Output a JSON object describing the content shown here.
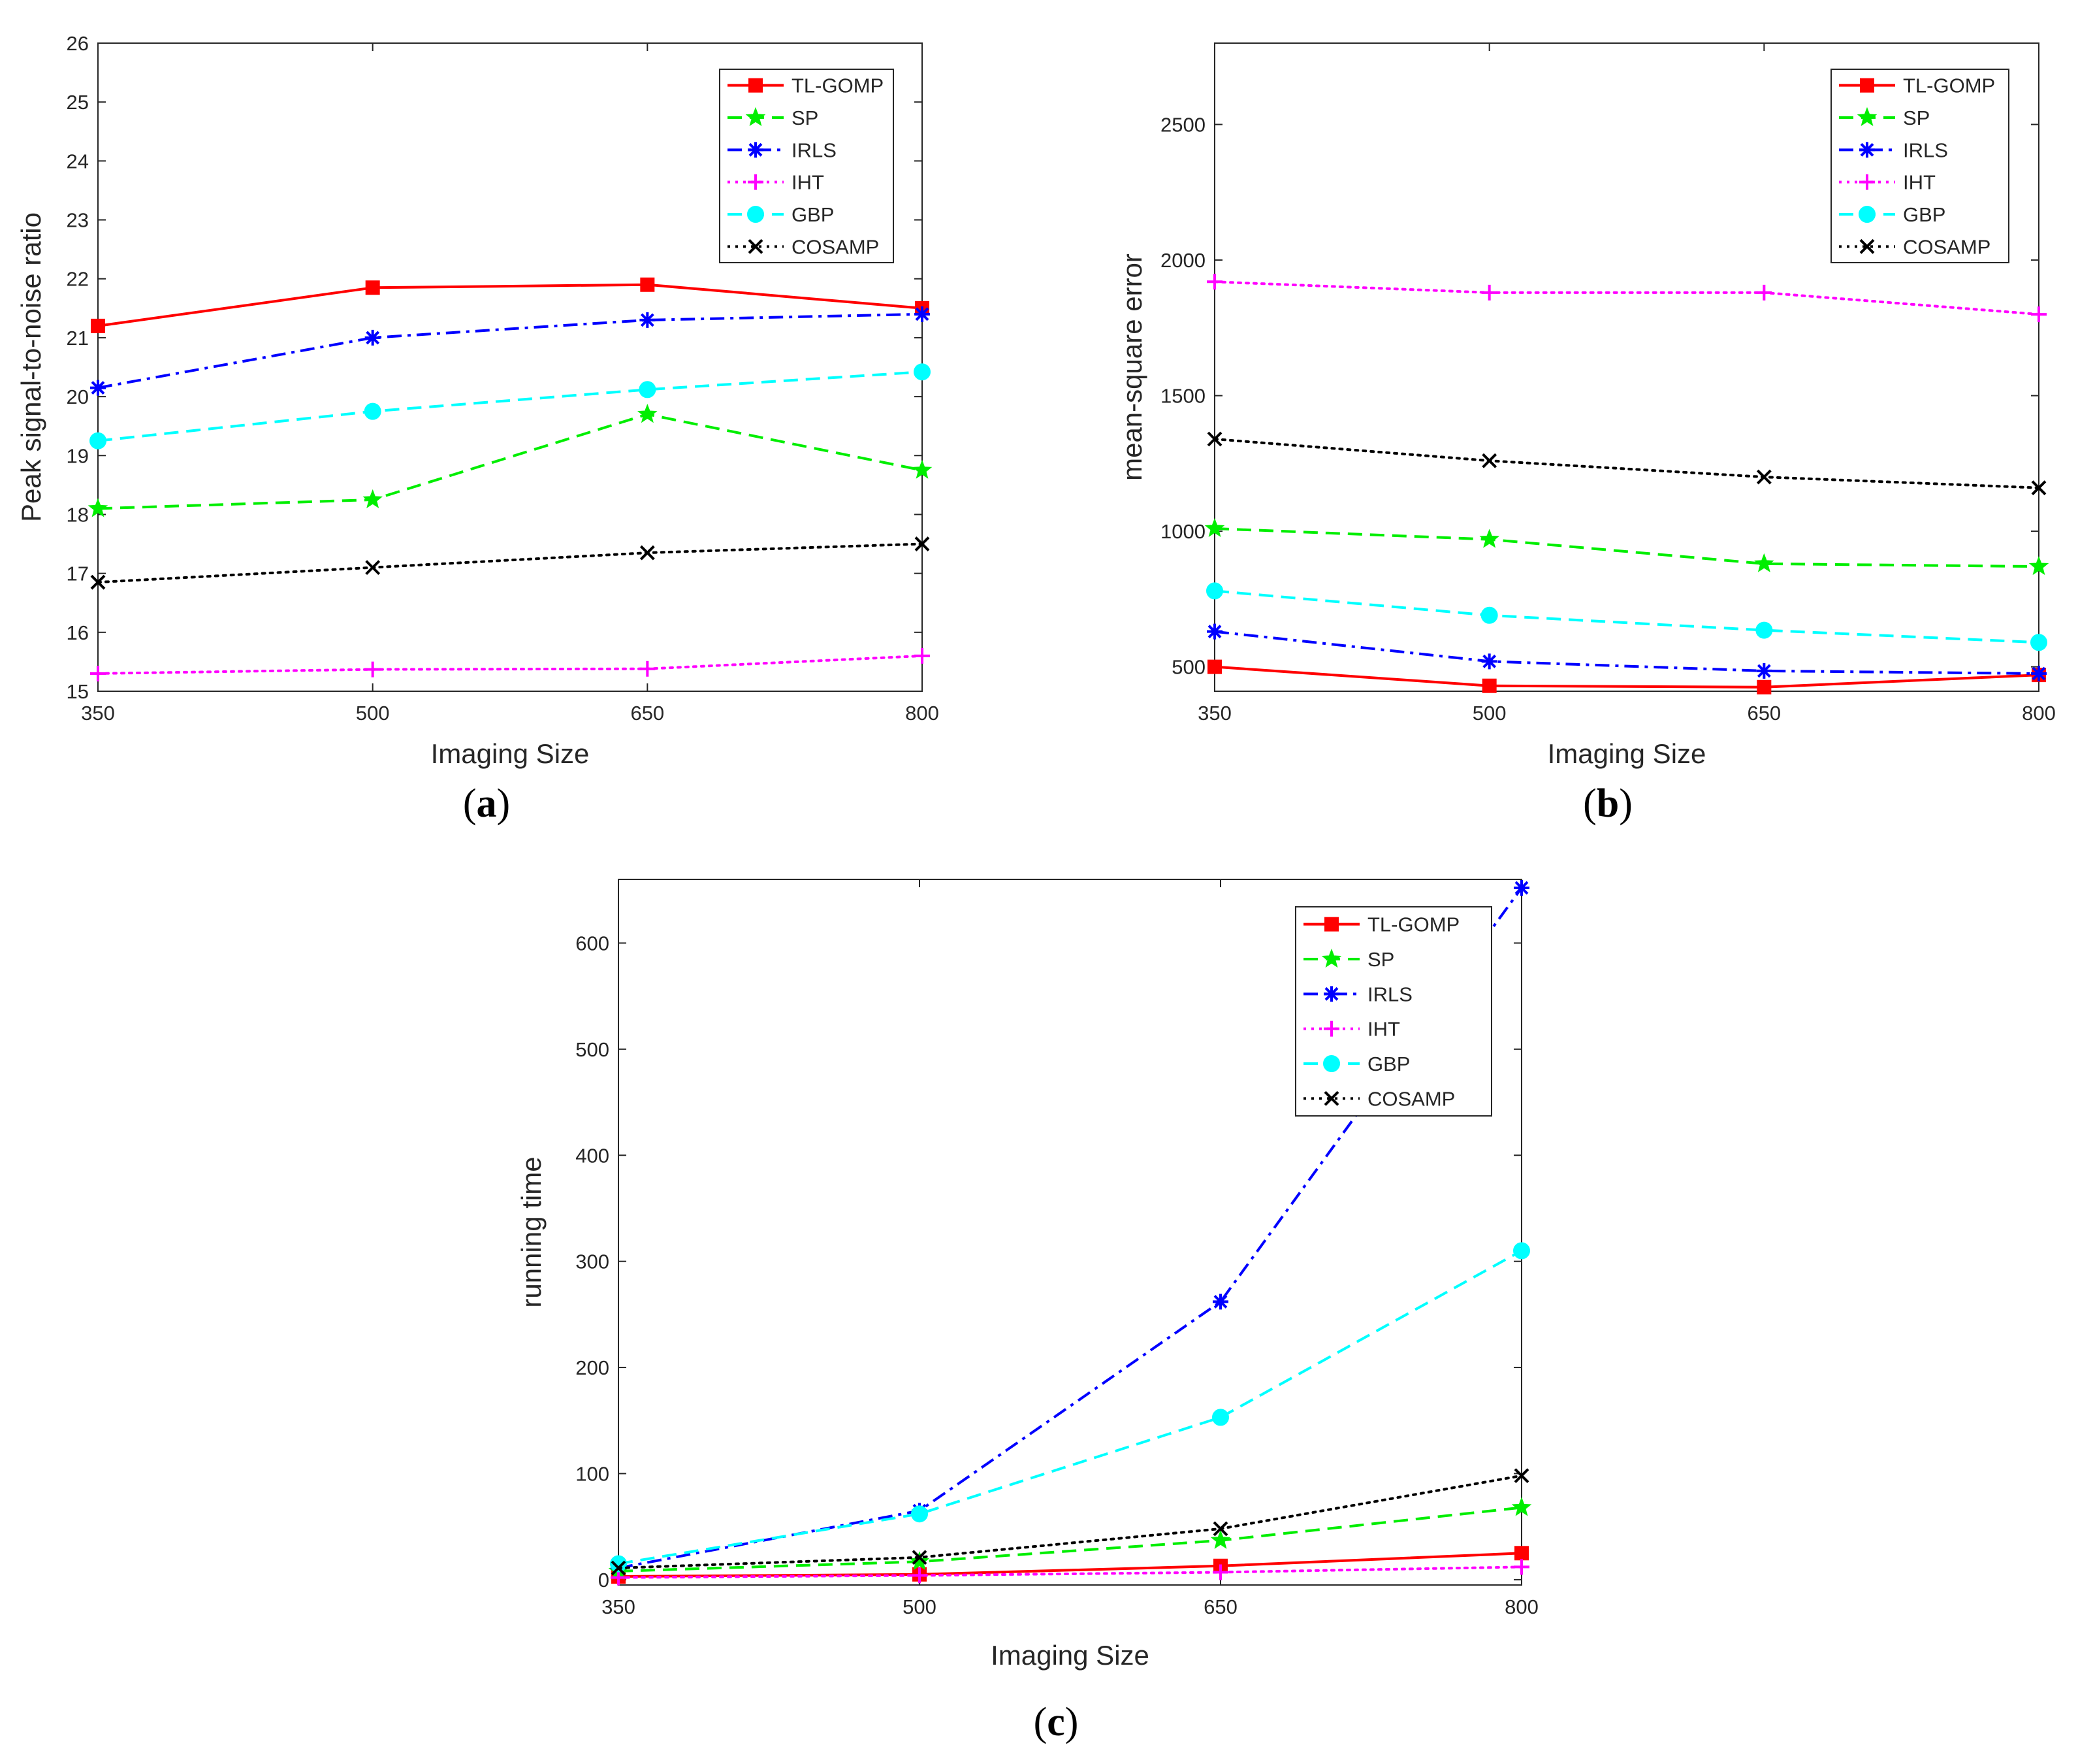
{
  "chart_data": [
    {
      "type": "line",
      "panel": "(a)",
      "caption_letter": "a",
      "xlabel": "Imaging Size",
      "ylabel": "Peak signal-to-noise ratio",
      "x": [
        350,
        500,
        650,
        800
      ],
      "xticks": [
        "350",
        "500",
        "650",
        "800"
      ],
      "ylim": [
        15,
        26
      ],
      "yticks": [
        "15",
        "16",
        "17",
        "18",
        "19",
        "20",
        "21",
        "22",
        "23",
        "24",
        "25",
        "26"
      ],
      "legend_position": "top-right",
      "series": [
        {
          "name": "TL-GOMP",
          "values": [
            21.2,
            21.85,
            21.9,
            21.5
          ],
          "color": "#ff0000",
          "dash": "solid",
          "marker": "square"
        },
        {
          "name": "SP",
          "values": [
            18.1,
            18.25,
            19.7,
            18.75
          ],
          "color": "#00ee00",
          "dash": "dashed",
          "marker": "star"
        },
        {
          "name": "IRLS",
          "values": [
            20.15,
            21.0,
            21.3,
            21.4
          ],
          "color": "#0000ff",
          "dash": "dashdot",
          "marker": "asterisk"
        },
        {
          "name": "IHT",
          "values": [
            15.3,
            15.37,
            15.38,
            15.6
          ],
          "color": "#ff00ff",
          "dash": "dotted",
          "marker": "plus"
        },
        {
          "name": "GBP",
          "values": [
            19.25,
            19.75,
            20.12,
            20.42
          ],
          "color": "#00ffff",
          "dash": "dashed",
          "marker": "circle"
        },
        {
          "name": "COSAMP",
          "values": [
            16.85,
            17.1,
            17.35,
            17.5
          ],
          "color": "#000000",
          "dash": "dotted",
          "marker": "x"
        }
      ]
    },
    {
      "type": "line",
      "panel": "(b)",
      "caption_letter": "b",
      "xlabel": "Imaging Size",
      "ylabel": "mean-square error",
      "x": [
        350,
        500,
        650,
        800
      ],
      "xticks": [
        "350",
        "500",
        "650",
        "800"
      ],
      "ylim": [
        410,
        2800
      ],
      "yticks": [
        "500",
        "1000",
        "1500",
        "2000",
        "2500"
      ],
      "yticks_values": [
        500,
        1000,
        1500,
        2000,
        2500
      ],
      "legend_position": "top-right",
      "series": [
        {
          "name": "TL-GOMP",
          "values": [
            500,
            430,
            425,
            470
          ],
          "color": "#ff0000",
          "dash": "solid",
          "marker": "square"
        },
        {
          "name": "SP",
          "values": [
            1010,
            970,
            880,
            870
          ],
          "color": "#00ee00",
          "dash": "dashed",
          "marker": "star"
        },
        {
          "name": "IRLS",
          "values": [
            630,
            520,
            485,
            475
          ],
          "color": "#0000ff",
          "dash": "dashdot",
          "marker": "asterisk"
        },
        {
          "name": "IHT",
          "values": [
            1920,
            1880,
            1880,
            1800
          ],
          "color": "#ff00ff",
          "dash": "dotted",
          "marker": "plus"
        },
        {
          "name": "GBP",
          "values": [
            780,
            690,
            635,
            590
          ],
          "color": "#00ffff",
          "dash": "dashed",
          "marker": "circle"
        },
        {
          "name": "COSAMP",
          "values": [
            1340,
            1260,
            1200,
            1160
          ],
          "color": "#000000",
          "dash": "dotted",
          "marker": "x"
        }
      ]
    },
    {
      "type": "line",
      "panel": "(c)",
      "caption_letter": "c",
      "xlabel": "Imaging Size",
      "ylabel": "running time",
      "x": [
        350,
        500,
        650,
        800
      ],
      "xticks": [
        "350",
        "500",
        "650",
        "800"
      ],
      "ylim": [
        -5,
        660
      ],
      "yticks": [
        "0",
        "100",
        "200",
        "300",
        "400",
        "500",
        "600"
      ],
      "yticks_values": [
        0,
        100,
        200,
        300,
        400,
        500,
        600
      ],
      "legend_position": "top-right",
      "series": [
        {
          "name": "TL-GOMP",
          "values": [
            3,
            5,
            13,
            25
          ],
          "color": "#ff0000",
          "dash": "solid",
          "marker": "square"
        },
        {
          "name": "SP",
          "values": [
            8,
            17,
            37,
            68
          ],
          "color": "#00ee00",
          "dash": "dashed",
          "marker": "star"
        },
        {
          "name": "IRLS",
          "values": [
            11,
            65,
            262,
            652
          ],
          "color": "#0000ff",
          "dash": "dashdot",
          "marker": "asterisk"
        },
        {
          "name": "IHT",
          "values": [
            2,
            4,
            7,
            12
          ],
          "color": "#ff00ff",
          "dash": "dotted",
          "marker": "plus"
        },
        {
          "name": "GBP",
          "values": [
            15,
            62,
            153,
            310
          ],
          "color": "#00ffff",
          "dash": "dashed",
          "marker": "circle"
        },
        {
          "name": "COSAMP",
          "values": [
            11,
            21,
            48,
            98
          ],
          "color": "#000000",
          "dash": "dotted",
          "marker": "x"
        }
      ]
    }
  ]
}
